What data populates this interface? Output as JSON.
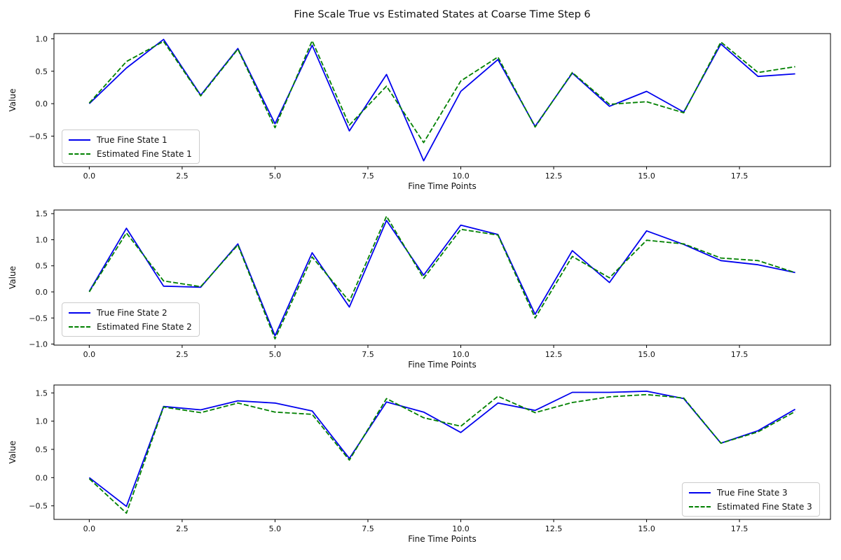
{
  "figure": {
    "title": "Fine Scale True vs Estimated States at Coarse Time Step 6",
    "background_color": "#ffffff",
    "axis_color": "#000000",
    "true_line_color": "#0000ee",
    "estimated_line_color": "#008000"
  },
  "chart_data": [
    {
      "type": "line",
      "xlabel": "Fine Time Points",
      "ylabel": "Value",
      "grid": false,
      "legend_position": "lower-left",
      "x": [
        0,
        1,
        2,
        3,
        4,
        5,
        6,
        7,
        8,
        9,
        10,
        11,
        12,
        13,
        14,
        15,
        16,
        17,
        18,
        19
      ],
      "xlim": [
        -0.95,
        19.95
      ],
      "ylim": [
        -0.97,
        1.08
      ],
      "xticks": [
        0,
        2.5,
        5,
        7.5,
        10,
        12.5,
        15,
        17.5
      ],
      "xtick_labels": [
        "0.0",
        "2.5",
        "5.0",
        "7.5",
        "10.0",
        "12.5",
        "15.0",
        "17.5"
      ],
      "yticks": [
        1.0,
        0.5,
        0.0,
        -0.5
      ],
      "ytick_labels": [
        "1.0",
        "0.5",
        "0.0",
        "−0.5"
      ],
      "series": [
        {
          "name": "True Fine State 1",
          "color": "#0000ee",
          "style": "solid",
          "values": [
            0.0,
            0.55,
            0.99,
            0.13,
            0.85,
            -0.31,
            0.9,
            -0.42,
            0.45,
            -0.88,
            0.19,
            0.68,
            -0.35,
            0.47,
            -0.04,
            0.19,
            -0.13,
            0.92,
            0.42,
            0.46
          ]
        },
        {
          "name": "Estimated Fine State 1",
          "color": "#008000",
          "style": "dashed",
          "values": [
            0.01,
            0.65,
            0.96,
            0.12,
            0.84,
            -0.37,
            0.97,
            -0.33,
            0.27,
            -0.6,
            0.35,
            0.72,
            -0.36,
            0.48,
            -0.01,
            0.03,
            -0.14,
            0.95,
            0.48,
            0.57
          ]
        }
      ]
    },
    {
      "type": "line",
      "xlabel": "Fine Time Points",
      "ylabel": "Value",
      "grid": false,
      "legend_position": "lower-left",
      "x": [
        0,
        1,
        2,
        3,
        4,
        5,
        6,
        7,
        8,
        9,
        10,
        11,
        12,
        13,
        14,
        15,
        16,
        17,
        18,
        19
      ],
      "xlim": [
        -0.95,
        19.95
      ],
      "ylim": [
        -1.02,
        1.57
      ],
      "xticks": [
        0,
        2.5,
        5,
        7.5,
        10,
        12.5,
        15,
        17.5
      ],
      "xtick_labels": [
        "0.0",
        "2.5",
        "5.0",
        "7.5",
        "10.0",
        "12.5",
        "15.0",
        "17.5"
      ],
      "yticks": [
        1.5,
        1.0,
        0.5,
        0.0,
        -0.5,
        -1.0
      ],
      "ytick_labels": [
        "1.5",
        "1.0",
        "0.5",
        "0.0",
        "−0.5",
        "−1.0"
      ],
      "series": [
        {
          "name": "True Fine State 2",
          "color": "#0000ee",
          "style": "solid",
          "values": [
            0.01,
            1.22,
            0.11,
            0.09,
            0.92,
            -0.84,
            0.75,
            -0.29,
            1.37,
            0.32,
            1.28,
            1.1,
            -0.43,
            0.79,
            0.18,
            1.17,
            0.91,
            0.6,
            0.52,
            0.37
          ]
        },
        {
          "name": "Estimated Fine State 2",
          "color": "#008000",
          "style": "dashed",
          "values": [
            0.0,
            1.13,
            0.21,
            0.1,
            0.9,
            -0.9,
            0.67,
            -0.18,
            1.45,
            0.26,
            1.2,
            1.09,
            -0.5,
            0.68,
            0.27,
            0.99,
            0.92,
            0.65,
            0.6,
            0.37
          ]
        }
      ]
    },
    {
      "type": "line",
      "xlabel": "Fine Time Points",
      "ylabel": "Value",
      "grid": false,
      "legend_position": "lower-right",
      "x": [
        0,
        1,
        2,
        3,
        4,
        5,
        6,
        7,
        8,
        9,
        10,
        11,
        12,
        13,
        14,
        15,
        16,
        17,
        18,
        19
      ],
      "xlim": [
        -0.95,
        19.95
      ],
      "ylim": [
        -0.74,
        1.64
      ],
      "xticks": [
        0,
        2.5,
        5,
        7.5,
        10,
        12.5,
        15,
        17.5
      ],
      "xtick_labels": [
        "0.0",
        "2.5",
        "5.0",
        "7.5",
        "10.0",
        "12.5",
        "15.0",
        "17.5"
      ],
      "yticks": [
        1.5,
        1.0,
        0.5,
        0.0,
        -0.5
      ],
      "ytick_labels": [
        "1.5",
        "1.0",
        "0.5",
        "0.0",
        "−0.5"
      ],
      "series": [
        {
          "name": "True Fine State 3",
          "color": "#0000ee",
          "style": "solid",
          "values": [
            0.0,
            -0.51,
            1.26,
            1.2,
            1.36,
            1.32,
            1.18,
            0.34,
            1.34,
            1.16,
            0.8,
            1.32,
            1.19,
            1.51,
            1.51,
            1.53,
            1.4,
            0.61,
            0.83,
            1.21
          ]
        },
        {
          "name": "Estimated Fine State 3",
          "color": "#008000",
          "style": "dashed",
          "values": [
            -0.02,
            -0.63,
            1.25,
            1.15,
            1.32,
            1.16,
            1.12,
            0.31,
            1.4,
            1.06,
            0.91,
            1.44,
            1.15,
            1.33,
            1.43,
            1.47,
            1.41,
            0.61,
            0.81,
            1.17
          ]
        }
      ]
    }
  ]
}
